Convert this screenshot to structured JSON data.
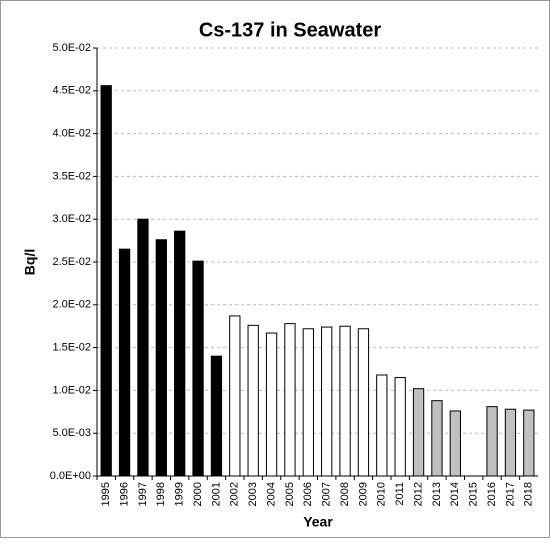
{
  "chart_data": {
    "type": "bar",
    "title": "Cs-137 in Seawater",
    "x_label": "Year",
    "y_label": "Bq/l",
    "categories": [
      "1995",
      "1996",
      "1997",
      "1998",
      "1999",
      "2000",
      "2001",
      "2002",
      "2003",
      "2004",
      "2005",
      "2006",
      "2007",
      "2008",
      "2009",
      "2010",
      "2011",
      "2012",
      "2013",
      "2014",
      "2015",
      "2016",
      "2017",
      "2018"
    ],
    "values": [
      0.0456,
      0.0265,
      0.03,
      0.0276,
      0.0286,
      0.0251,
      0.014,
      0.0187,
      0.0176,
      0.0167,
      0.0178,
      0.0172,
      0.0174,
      0.0175,
      0.0172,
      0.0118,
      0.0115,
      0.0102,
      0.0088,
      0.0076,
      null,
      0.0081,
      0.0078,
      0.0077
    ],
    "colors": [
      "#000000",
      "#000000",
      "#000000",
      "#000000",
      "#000000",
      "#000000",
      "#000000",
      "#ffffff",
      "#ffffff",
      "#ffffff",
      "#ffffff",
      "#ffffff",
      "#ffffff",
      "#ffffff",
      "#ffffff",
      "#ffffff",
      "#ffffff",
      "#c0c0c0",
      "#c0c0c0",
      "#c0c0c0",
      "#c0c0c0",
      "#c0c0c0",
      "#c0c0c0",
      "#c0c0c0"
    ],
    "ylim": [
      0,
      0.05
    ],
    "yticks": [
      {
        "value": 0,
        "label": "0.0E+00"
      },
      {
        "value": 0.005,
        "label": "5.0E-03"
      },
      {
        "value": 0.01,
        "label": "1.0E-02"
      },
      {
        "value": 0.015,
        "label": "1.5E-02"
      },
      {
        "value": 0.02,
        "label": "2.0E-02"
      },
      {
        "value": 0.025,
        "label": "2.5E-02"
      },
      {
        "value": 0.03,
        "label": "3.0E-02"
      },
      {
        "value": 0.035,
        "label": "3.5E-02"
      },
      {
        "value": 0.04,
        "label": "4.0E-02"
      },
      {
        "value": 0.045,
        "label": "4.5E-02"
      },
      {
        "value": 0.05,
        "label": "5.0E-02"
      }
    ],
    "grid": true
  }
}
